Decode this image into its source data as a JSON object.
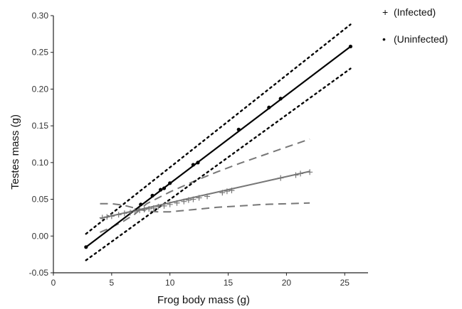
{
  "chart_data": {
    "type": "scatter",
    "title": "",
    "xlabel": "Frog body mass (g)",
    "ylabel": "Testes mass (g)",
    "xlim": [
      0,
      27
    ],
    "ylim": [
      -0.05,
      0.3
    ],
    "x_ticks": [
      0,
      5,
      10,
      15,
      20,
      25
    ],
    "x_tick_labels": [
      "0",
      "5",
      "10",
      "15",
      "20",
      "25"
    ],
    "y_ticks": [
      -0.05,
      0.0,
      0.05,
      0.1,
      0.15,
      0.2,
      0.25,
      0.3
    ],
    "y_tick_labels": [
      "-0.05",
      "0.00",
      "0.05",
      "0.10",
      "0.15",
      "0.20",
      "0.25",
      "0.30"
    ],
    "grid": false,
    "legend_position": "top-right",
    "legend": [
      {
        "symbol": "+",
        "label": "(Infected)"
      },
      {
        "symbol": "•",
        "label": "(Uninfected)"
      }
    ],
    "series": [
      {
        "name": "(Infected)",
        "marker": "plus",
        "color": "#777777",
        "points": [
          [
            4.2,
            0.025
          ],
          [
            4.6,
            0.026
          ],
          [
            5.0,
            0.027
          ],
          [
            5.6,
            0.029
          ],
          [
            6.1,
            0.031
          ],
          [
            6.6,
            0.032
          ],
          [
            7.0,
            0.034
          ],
          [
            7.4,
            0.035
          ],
          [
            7.8,
            0.036
          ],
          [
            8.2,
            0.037
          ],
          [
            8.6,
            0.038
          ],
          [
            9.0,
            0.04
          ],
          [
            9.5,
            0.041
          ],
          [
            10.0,
            0.043
          ],
          [
            10.6,
            0.045
          ],
          [
            11.2,
            0.047
          ],
          [
            11.6,
            0.049
          ],
          [
            12.0,
            0.05
          ],
          [
            12.5,
            0.052
          ],
          [
            13.2,
            0.054
          ],
          [
            14.5,
            0.059
          ],
          [
            14.9,
            0.061
          ],
          [
            15.3,
            0.062
          ],
          [
            19.5,
            0.079
          ],
          [
            20.8,
            0.083
          ],
          [
            21.2,
            0.085
          ],
          [
            22.0,
            0.087
          ]
        ],
        "fit": {
          "x": [
            4,
            22
          ],
          "y": [
            0.024,
            0.088
          ]
        },
        "ci_upper": [
          [
            4,
            0.005
          ],
          [
            5,
            0.012
          ],
          [
            6,
            0.02
          ],
          [
            7,
            0.03
          ],
          [
            8,
            0.044
          ],
          [
            9,
            0.052
          ],
          [
            10,
            0.06
          ],
          [
            12,
            0.074
          ],
          [
            14,
            0.087
          ],
          [
            16,
            0.099
          ],
          [
            18,
            0.11
          ],
          [
            20,
            0.121
          ],
          [
            22,
            0.132
          ]
        ],
        "ci_lower": [
          [
            4,
            0.044
          ],
          [
            5,
            0.044
          ],
          [
            6,
            0.042
          ],
          [
            7,
            0.038
          ],
          [
            8,
            0.034
          ],
          [
            9,
            0.033
          ],
          [
            10,
            0.033
          ],
          [
            12,
            0.036
          ],
          [
            14,
            0.039
          ],
          [
            16,
            0.041
          ],
          [
            18,
            0.043
          ],
          [
            20,
            0.044
          ],
          [
            22,
            0.045
          ]
        ]
      },
      {
        "name": "(Uninfected)",
        "marker": "dot",
        "color": "#000000",
        "points": [
          [
            2.8,
            -0.015
          ],
          [
            7.5,
            0.043
          ],
          [
            8.5,
            0.055
          ],
          [
            9.2,
            0.063
          ],
          [
            9.5,
            0.065
          ],
          [
            10.0,
            0.072
          ],
          [
            12.0,
            0.097
          ],
          [
            12.4,
            0.1
          ],
          [
            15.9,
            0.145
          ],
          [
            18.5,
            0.175
          ],
          [
            19.5,
            0.187
          ],
          [
            25.5,
            0.258
          ]
        ],
        "fit": {
          "x": [
            2.8,
            25.5
          ],
          "y": [
            -0.015,
            0.258
          ]
        },
        "ci_upper": [
          [
            2.8,
            0.003
          ],
          [
            25.5,
            0.288
          ]
        ],
        "ci_lower": [
          [
            2.8,
            -0.033
          ],
          [
            25.5,
            0.228
          ]
        ]
      }
    ]
  }
}
